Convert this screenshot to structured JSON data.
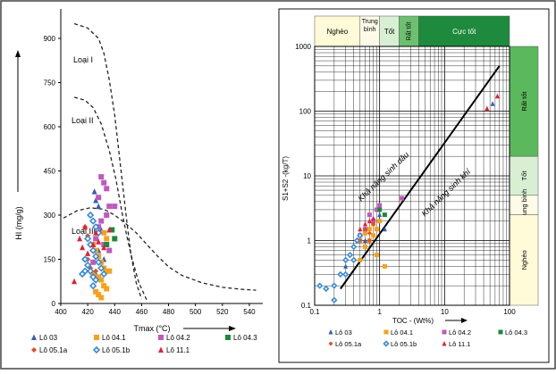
{
  "chart_data": [
    {
      "type": "scatter",
      "xlabel": "Tmax (°C)",
      "ylabel": "HI (mg/g)",
      "xlim": [
        400,
        550
      ],
      "ylim": [
        0,
        1000
      ],
      "xticks": [
        "400",
        "420",
        "440",
        "460",
        "480",
        "500",
        "520",
        "540"
      ],
      "yticks": [
        "0",
        "150",
        "300",
        "450",
        "600",
        "750",
        "900"
      ],
      "grid": false,
      "annotations": [
        "Loại I",
        "Loại II",
        "Loại III"
      ],
      "boundaries": [
        {
          "name": "I/II",
          "points": [
            [
              410,
              950
            ],
            [
              420,
              935
            ],
            [
              428,
              900
            ],
            [
              432,
              850
            ],
            [
              436,
              760
            ],
            [
              440,
              640
            ],
            [
              443,
              520
            ],
            [
              446,
              400
            ],
            [
              449,
              280
            ],
            [
              452,
              170
            ],
            [
              456,
              70
            ],
            [
              460,
              15
            ]
          ]
        },
        {
          "name": "II/III",
          "points": [
            [
              410,
              700
            ],
            [
              418,
              690
            ],
            [
              424,
              665
            ],
            [
              430,
              610
            ],
            [
              436,
              520
            ],
            [
              441,
              420
            ],
            [
              445,
              320
            ],
            [
              449,
              230
            ],
            [
              453,
              150
            ],
            [
              458,
              70
            ],
            [
              464,
              10
            ]
          ]
        },
        {
          "name": "III",
          "points": [
            [
              402,
              290
            ],
            [
              412,
              315
            ],
            [
              422,
              325
            ],
            [
              432,
              320
            ],
            [
              440,
              300
            ],
            [
              448,
              272
            ],
            [
              456,
              240
            ],
            [
              464,
              200
            ],
            [
              472,
              160
            ],
            [
              480,
              125
            ],
            [
              490,
              95
            ],
            [
              505,
              70
            ],
            [
              520,
              55
            ],
            [
              535,
              48
            ],
            [
              545,
              45
            ]
          ]
        }
      ],
      "legend": [
        "Lô 03",
        "Lô 04.1",
        "Lô 04.2",
        "Lô 04.3",
        "Lô 05.1a",
        "Lô 05.1b",
        "Lô 11.1"
      ],
      "series": [
        {
          "name": "Lô 03",
          "marker": "triangle",
          "color": "#3a5bb0",
          "points": [
            [
              425,
              380
            ],
            [
              426,
              350
            ],
            [
              428,
              330
            ],
            [
              430,
              250
            ],
            [
              428,
              180
            ],
            [
              432,
              150
            ],
            [
              426,
              100
            ]
          ]
        },
        {
          "name": "Lô 04.1",
          "marker": "square",
          "color": "#f7a11a",
          "points": [
            [
              424,
              200
            ],
            [
              426,
              180
            ],
            [
              428,
              160
            ],
            [
              430,
              140
            ],
            [
              432,
              120
            ],
            [
              434,
              110
            ],
            [
              428,
              90
            ],
            [
              430,
              80
            ],
            [
              432,
              60
            ],
            [
              434,
              50
            ],
            [
              426,
              40
            ],
            [
              428,
              30
            ],
            [
              430,
              20
            ],
            [
              436,
              110
            ],
            [
              424,
              100
            ],
            [
              432,
              240
            ],
            [
              434,
              220
            ]
          ]
        },
        {
          "name": "Lô 04.2",
          "marker": "square",
          "color": "#c058c0",
          "points": [
            [
              430,
              430
            ],
            [
              432,
              410
            ],
            [
              434,
              390
            ],
            [
              428,
              360
            ],
            [
              436,
              330
            ],
            [
              440,
              330
            ],
            [
              434,
              300
            ],
            [
              430,
              280
            ],
            [
              428,
              260
            ],
            [
              426,
              220
            ],
            [
              432,
              200
            ],
            [
              436,
              180
            ],
            [
              424,
              140
            ]
          ]
        },
        {
          "name": "Lô 04.3",
          "marker": "square",
          "color": "#1a8a3a",
          "points": [
            [
              438,
              250
            ],
            [
              440,
              220
            ],
            [
              434,
              200
            ]
          ]
        },
        {
          "name": "Lô 05.1a",
          "marker": "diamond",
          "color": "#e05020",
          "points": [
            [
              418,
              260
            ],
            [
              420,
              230
            ],
            [
              422,
              200
            ],
            [
              424,
              180
            ],
            [
              420,
              150
            ],
            [
              422,
              120
            ],
            [
              426,
              110
            ]
          ]
        },
        {
          "name": "Lô 05.1b",
          "marker": "diamond-open",
          "color": "#3a8ad8",
          "points": [
            [
              422,
              300
            ],
            [
              424,
              280
            ],
            [
              426,
              260
            ],
            [
              428,
              240
            ],
            [
              420,
              220
            ],
            [
              422,
              200
            ],
            [
              424,
              180
            ],
            [
              426,
              160
            ],
            [
              418,
              150
            ],
            [
              420,
              130
            ],
            [
              422,
              110
            ],
            [
              424,
              90
            ],
            [
              426,
              80
            ],
            [
              428,
              140
            ],
            [
              430,
              120
            ],
            [
              432,
              100
            ],
            [
              418,
              110
            ],
            [
              416,
              100
            ],
            [
              424,
              60
            ]
          ]
        },
        {
          "name": "Lô 11.1",
          "marker": "triangle",
          "color": "#e0203a",
          "points": [
            [
              414,
              220
            ],
            [
              416,
              190
            ],
            [
              418,
              260
            ],
            [
              410,
              75
            ],
            [
              420,
              170
            ],
            [
              424,
              200
            ],
            [
              428,
              210
            ],
            [
              432,
              190
            ],
            [
              436,
              250
            ],
            [
              426,
              240
            ]
          ]
        }
      ]
    },
    {
      "type": "scatter",
      "xlabel": "TOC - (Wt%)",
      "ylabel": "S1+S2 -(kg/T)",
      "xscale": "log",
      "yscale": "log",
      "xlim": [
        0.1,
        100
      ],
      "ylim": [
        0.1,
        1000
      ],
      "xticks": [
        "0.1",
        "1",
        "10",
        "100"
      ],
      "yticks": [
        "0.1",
        "1",
        "10",
        "100",
        "1000"
      ],
      "grid": true,
      "top_bands": [
        "Nghèo",
        "Trung bình",
        "Tốt",
        "Rất tốt",
        "Cực tốt"
      ],
      "right_bands": [
        "Rất tốt",
        "Tốt",
        "Trung bình",
        "Nghèo"
      ],
      "trend_line": {
        "x": [
          0.25,
          70
        ],
        "y": [
          0.18,
          500
        ]
      },
      "annotations": [
        "Khả năng sinh dầu",
        "Khả năng sinh khí"
      ],
      "legend": [
        "Lô 03",
        "Lô 04.1",
        "Lô 04.2",
        "Lô 04.3",
        "Lô 05.1a",
        "Lô 05.1b",
        "Lô 11.1"
      ],
      "series": [
        {
          "name": "Lô 03",
          "marker": "triangle",
          "color": "#3a5bb0",
          "points": [
            [
              1.0,
              2.5
            ],
            [
              1.2,
              1.5
            ],
            [
              0.6,
              1.0
            ],
            [
              0.8,
              1.8
            ],
            [
              0.3,
              0.4
            ],
            [
              55,
              130
            ]
          ]
        },
        {
          "name": "Lô 04.1",
          "marker": "square",
          "color": "#f7a11a",
          "points": [
            [
              0.5,
              0.5
            ],
            [
              0.6,
              0.8
            ],
            [
              0.7,
              1.0
            ],
            [
              0.8,
              1.2
            ],
            [
              0.9,
              1.5
            ],
            [
              0.6,
              1.3
            ],
            [
              0.7,
              1.5
            ],
            [
              0.8,
              1.8
            ],
            [
              1.0,
              2.0
            ],
            [
              1.2,
              0.4
            ],
            [
              0.5,
              1.0
            ],
            [
              0.9,
              0.6
            ]
          ]
        },
        {
          "name": "Lô 04.2",
          "marker": "square",
          "color": "#c058c0",
          "points": [
            [
              0.9,
              3.0
            ],
            [
              1.0,
              3.5
            ],
            [
              0.6,
              1.5
            ],
            [
              0.8,
              2.0
            ],
            [
              0.7,
              2.5
            ],
            [
              0.5,
              1.2
            ],
            [
              2.2,
              4.5
            ]
          ]
        },
        {
          "name": "Lô 04.3",
          "marker": "square",
          "color": "#1a8a3a",
          "points": [
            [
              1.2,
              2.5
            ],
            [
              1.0,
              3.0
            ]
          ]
        },
        {
          "name": "Lô 05.1a",
          "marker": "diamond",
          "color": "#e05020",
          "points": [
            [
              0.6,
              1.5
            ],
            [
              0.7,
              1.3
            ],
            [
              0.8,
              1.8
            ],
            [
              0.5,
              1.0
            ],
            [
              0.7,
              1.0
            ]
          ]
        },
        {
          "name": "Lô 05.1b",
          "marker": "diamond-open",
          "color": "#3a8ad8",
          "points": [
            [
              0.12,
              0.2
            ],
            [
              0.15,
              0.18
            ],
            [
              0.2,
              0.2
            ],
            [
              0.2,
              0.12
            ],
            [
              0.25,
              0.3
            ],
            [
              0.3,
              0.5
            ],
            [
              0.35,
              0.6
            ],
            [
              0.4,
              0.8
            ],
            [
              0.45,
              1.0
            ],
            [
              0.5,
              1.2
            ],
            [
              0.4,
              0.5
            ],
            [
              0.3,
              0.3
            ]
          ]
        },
        {
          "name": "Lô 11.1",
          "marker": "triangle",
          "color": "#e0203a",
          "points": [
            [
              0.5,
              1.5
            ],
            [
              0.6,
              1.8
            ],
            [
              0.7,
              2.0
            ],
            [
              65,
              170
            ],
            [
              45,
              110
            ],
            [
              0.8,
              2.2
            ]
          ]
        }
      ]
    }
  ]
}
